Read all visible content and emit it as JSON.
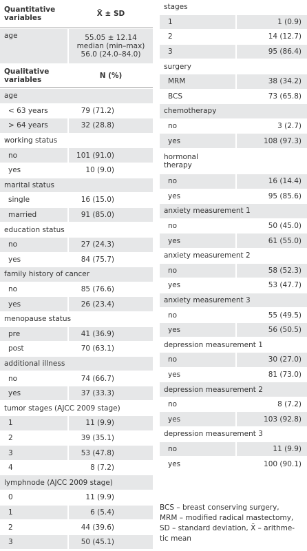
{
  "left": {
    "quant_header": [
      "Quantitative variables",
      "X̄ ± SD"
    ],
    "quant_rows": [
      {
        "label": "age",
        "value": [
          "55.05 ± 12.14",
          "median (min–max)",
          "56.0 (24.0–84.0)"
        ]
      }
    ],
    "qual_header": [
      "Qualitative variables",
      "N (%)"
    ],
    "sections": [
      {
        "title": [
          "age"
        ],
        "rows": [
          [
            "< 63 years",
            "79 (71.2)"
          ],
          [
            "> 64 years",
            "32 (28.8)"
          ]
        ]
      },
      {
        "title": [
          "working status"
        ],
        "rows": [
          [
            "no",
            "101 (91.0)"
          ],
          [
            "yes",
            "10 (9.0)"
          ]
        ]
      },
      {
        "title": [
          "marital status"
        ],
        "rows": [
          [
            "single",
            "16 (15.0)"
          ],
          [
            "married",
            "91 (85.0)"
          ]
        ]
      },
      {
        "title": [
          "education status"
        ],
        "rows": [
          [
            "no",
            "27 (24.3)"
          ],
          [
            "yes",
            "84 (75.7)"
          ]
        ]
      },
      {
        "title": [
          "family history of cancer"
        ],
        "rows": [
          [
            "no",
            "85 (76.6)"
          ],
          [
            "yes",
            "26 (23.4)"
          ]
        ]
      },
      {
        "title": [
          "menopause status"
        ],
        "rows": [
          [
            "pre",
            "41 (36.9)"
          ],
          [
            "post",
            "70 (63.1)"
          ]
        ]
      },
      {
        "title": [
          "additional illness"
        ],
        "rows": [
          [
            "no",
            "74 (66.7)"
          ],
          [
            "yes",
            "37 (33.3)"
          ]
        ]
      },
      {
        "title": [
          "tumor stages (AJCC 2009 stage)"
        ],
        "rows": [
          [
            "1",
            "11 (9.9)"
          ],
          [
            "2",
            "39 (35.1)"
          ],
          [
            "3",
            "53 (47.8)"
          ],
          [
            "4",
            "8 (7.2)"
          ]
        ]
      },
      {
        "title": [
          "lymphnode (AJCC 2009 stage)"
        ],
        "rows": [
          [
            "0",
            "11 (9.9)"
          ],
          [
            "1",
            "6 (5.4)"
          ],
          [
            "2",
            "44 (39.6)"
          ],
          [
            "3",
            "50 (45.1)"
          ]
        ]
      }
    ]
  },
  "right": {
    "sections": [
      {
        "title": [
          "stages"
        ],
        "rows": [
          [
            "1",
            "1 (0.9)"
          ],
          [
            "2",
            "14 (12.7)"
          ],
          [
            "3",
            "95 (86.4)"
          ]
        ]
      },
      {
        "title": [
          "surgery"
        ],
        "rows": [
          [
            "MRM",
            "38 (34.2)"
          ],
          [
            "BCS",
            "73 (65.8)"
          ]
        ]
      },
      {
        "title": [
          "chemotherapy"
        ],
        "rows": [
          [
            "no",
            "3 (2.7)"
          ],
          [
            "yes",
            "108 (97.3)"
          ]
        ]
      },
      {
        "title": [
          "hormonal",
          "therapy"
        ],
        "rows": [
          [
            "no",
            "16 (14.4)"
          ],
          [
            "yes",
            "95 (85.6)"
          ]
        ]
      },
      {
        "title": [
          "anxiety measurement 1"
        ],
        "rows": [
          [
            "no",
            "50 (45.0)"
          ],
          [
            "yes",
            "61 (55.0)"
          ]
        ]
      },
      {
        "title": [
          "anxiety measurement 2"
        ],
        "rows": [
          [
            "no",
            "58 (52.3)"
          ],
          [
            "yes",
            "53 (47.7)"
          ]
        ]
      },
      {
        "title": [
          "anxiety measurement 3"
        ],
        "rows": [
          [
            "no",
            "55 (49.5)"
          ],
          [
            "yes",
            "56 (50.5)"
          ]
        ]
      },
      {
        "title": [
          "depression measurement 1"
        ],
        "rows": [
          [
            "no",
            "30 (27.0)"
          ],
          [
            "yes",
            "81 (73.0)"
          ]
        ]
      },
      {
        "title": [
          "depression measurement 2"
        ],
        "rows": [
          [
            "no",
            "8 (7.2)"
          ],
          [
            "yes",
            "103 (92.8)"
          ]
        ]
      },
      {
        "title": [
          "depression measurement 3"
        ],
        "rows": [
          [
            "no",
            "11 (9.9)"
          ],
          [
            "yes",
            "100 (90.1)"
          ]
        ]
      }
    ]
  },
  "footnote": [
    "BCS – breast conserving surgery,",
    "MRM – modified radical mastectomy,",
    "SD – standard deviation, X̄ – arithme-",
    "tic mean"
  ]
}
